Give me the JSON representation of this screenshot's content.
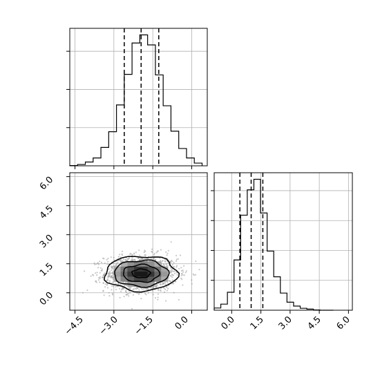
{
  "chart_data": [
    {
      "panel": "marginal-x",
      "type": "histogram",
      "style": "step",
      "grid": true,
      "x_range": [
        -4.7,
        0.6
      ],
      "x_ticks": [
        -4.5,
        -3.0,
        -1.5,
        0.0
      ],
      "y_ticks_labeled": false,
      "bin_edges": [
        -4.7,
        -4.4,
        -4.1,
        -3.8,
        -3.5,
        -3.2,
        -2.9,
        -2.6,
        -2.3,
        -2.0,
        -1.7,
        -1.4,
        -1.1,
        -0.8,
        -0.5,
        -0.2,
        0.1,
        0.4
      ],
      "counts": [
        1,
        5,
        14,
        29,
        68,
        126,
        225,
        338,
        454,
        484,
        447,
        336,
        222,
        128,
        64,
        29,
        10
      ],
      "quantiles": [
        -2.6,
        -1.95,
        -1.27
      ]
    },
    {
      "panel": "marginal-y",
      "type": "histogram",
      "style": "step",
      "grid": true,
      "x_range": [
        -0.9,
        6.2
      ],
      "x_ticks": [
        0.0,
        1.5,
        3.0,
        4.5,
        6.0
      ],
      "y_ticks_labeled": false,
      "bin_edges": [
        -0.9,
        -0.56,
        -0.22,
        0.12,
        0.46,
        0.8,
        1.14,
        1.48,
        1.82,
        2.16,
        2.5,
        2.84,
        3.18,
        3.52,
        3.86,
        4.2,
        4.54,
        4.88,
        5.22
      ],
      "counts": [
        8,
        22,
        65,
        182,
        344,
        436,
        474,
        352,
        214,
        121,
        62,
        29,
        15,
        7,
        4,
        1,
        0,
        0
      ],
      "quantiles": [
        0.42,
        1.0,
        1.6
      ]
    },
    {
      "panel": "joint",
      "type": "heatmap",
      "grid": true,
      "x_range": [
        -4.7,
        0.6
      ],
      "y_range": [
        -0.9,
        6.2
      ],
      "x_ticks": [
        -4.5,
        -3.0,
        -1.5,
        0.0
      ],
      "y_ticks": [
        0.0,
        1.5,
        3.0,
        4.5,
        6.0
      ],
      "density_mean": [
        -1.95,
        1.0
      ],
      "density_sd": [
        0.7,
        0.45
      ],
      "contour_sigma_levels": [
        0.5,
        1.0,
        1.5,
        2.0
      ]
    }
  ],
  "tick_labels": {
    "x_bottom_left": [
      "−4.5",
      "−3.0",
      "−1.5",
      "0.0"
    ],
    "y_left": [
      "0.0",
      "1.5",
      "3.0",
      "4.5",
      "6.0"
    ],
    "x_bottom_right": [
      "0.0",
      "1.5",
      "3.0",
      "4.5",
      "6.0"
    ]
  },
  "colors": {
    "line": "#000000",
    "grid": "#b0b0b0",
    "quantile": "#000000",
    "scatter": "#9a9a9a"
  }
}
